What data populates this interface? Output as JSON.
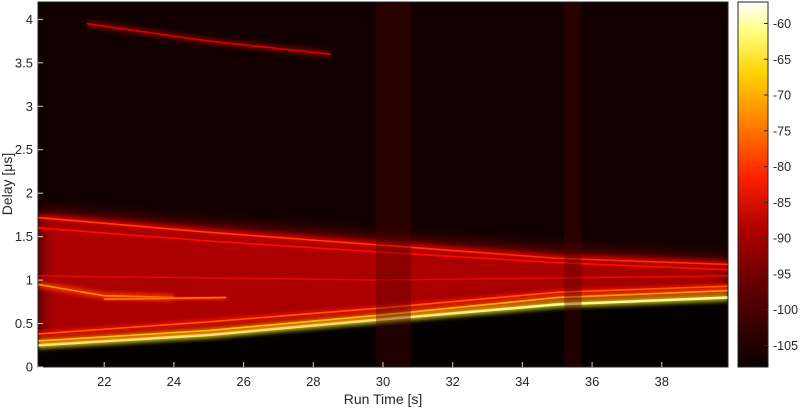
{
  "chart_data": {
    "type": "heatmap",
    "title": "",
    "xlabel": "Run Time [s]",
    "ylabel": "Delay [μs]",
    "xlim": [
      20.1,
      39.9
    ],
    "ylim": [
      0,
      4.2
    ],
    "xticks": [
      22,
      24,
      26,
      28,
      30,
      32,
      34,
      36,
      38
    ],
    "yticks": [
      0,
      0.5,
      1,
      1.5,
      2,
      2.5,
      3,
      3.5,
      4
    ],
    "colorbar": {
      "colormap": "hot",
      "range": [
        -108,
        -57
      ],
      "ticks": [
        -60,
        -65,
        -70,
        -75,
        -80,
        -85,
        -90,
        -95,
        -100,
        -105
      ]
    },
    "background_level": -106,
    "traces": [
      {
        "desc": "lower edge main path",
        "points": [
          [
            20.1,
            0.25
          ],
          [
            25,
            0.37
          ],
          [
            30,
            0.55
          ],
          [
            35,
            0.72
          ],
          [
            39.9,
            0.8
          ]
        ],
        "level": -62
      },
      {
        "desc": "second main path",
        "points": [
          [
            20.1,
            0.3
          ],
          [
            25,
            0.42
          ],
          [
            30,
            0.6
          ],
          [
            35,
            0.8
          ],
          [
            39.9,
            0.88
          ]
        ],
        "level": -74
      },
      {
        "desc": "third path",
        "points": [
          [
            20.1,
            0.38
          ],
          [
            25,
            0.52
          ],
          [
            30,
            0.68
          ],
          [
            35,
            0.86
          ],
          [
            39.9,
            0.93
          ]
        ],
        "level": -82
      },
      {
        "desc": "upper band",
        "points": [
          [
            20.1,
            1.72
          ],
          [
            25,
            1.55
          ],
          [
            30,
            1.4
          ],
          [
            35,
            1.25
          ],
          [
            39.9,
            1.18
          ]
        ],
        "level": -84
      },
      {
        "desc": "upper band 2",
        "points": [
          [
            20.1,
            1.6
          ],
          [
            25,
            1.45
          ],
          [
            30,
            1.32
          ],
          [
            35,
            1.2
          ],
          [
            39.9,
            1.12
          ]
        ],
        "level": -88
      },
      {
        "desc": "early bright line",
        "points": [
          [
            20.1,
            0.95
          ],
          [
            22,
            0.82
          ],
          [
            24,
            0.8
          ]
        ],
        "level": -78
      },
      {
        "desc": "mid line",
        "points": [
          [
            22,
            0.78
          ],
          [
            25.5,
            0.8
          ]
        ],
        "level": -80
      },
      {
        "desc": "far line",
        "points": [
          [
            21.5,
            3.95
          ],
          [
            25,
            3.75
          ],
          [
            28.5,
            3.6
          ]
        ],
        "level": -92
      },
      {
        "desc": "band 1.0",
        "points": [
          [
            20.1,
            1.05
          ],
          [
            30,
            1.0
          ],
          [
            39.9,
            1.05
          ]
        ],
        "level": -90
      }
    ],
    "dark_columns": [
      [
        29.8,
        30.8
      ],
      [
        35.2,
        35.7
      ]
    ]
  }
}
